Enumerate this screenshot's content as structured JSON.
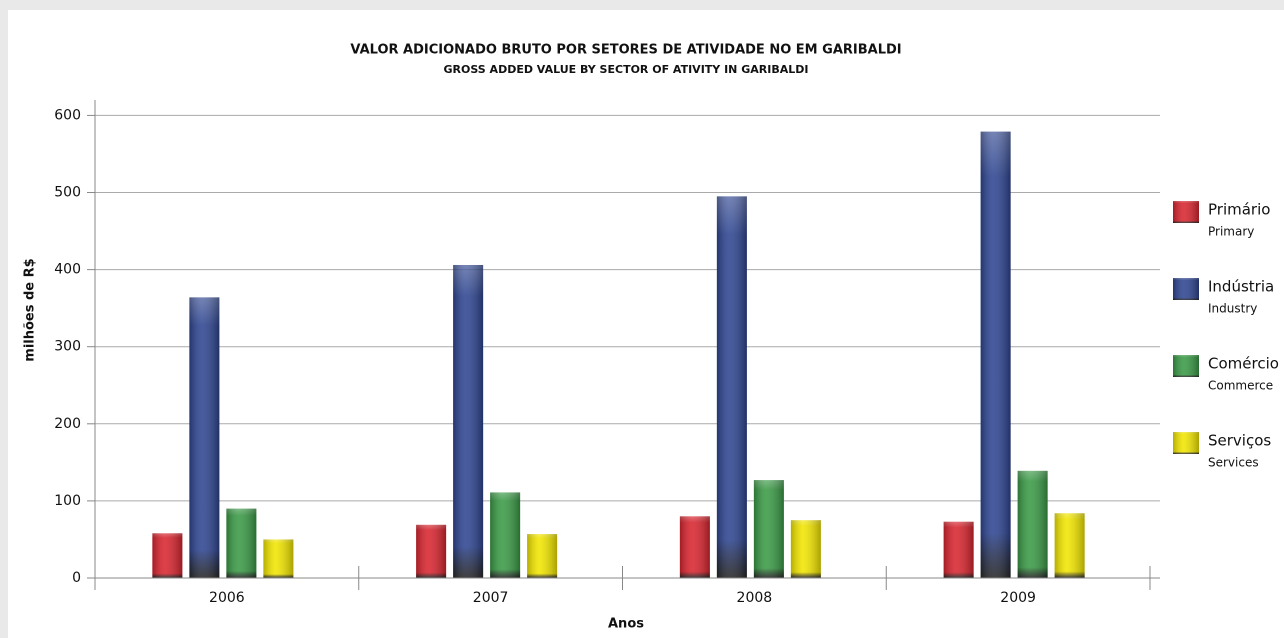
{
  "chart_data": {
    "type": "bar",
    "title": "VALOR ADICIONADO BRUTO POR SETORES DE ATIVIDADE NO EM GARIBALDI",
    "subtitle": "GROSS ADDED VALUE BY SECTOR OF ATIVITY IN GARIBALDI",
    "x_label": "Anos",
    "y_label": "milhões de R$",
    "categories": [
      "2006",
      "2007",
      "2008",
      "2009"
    ],
    "series": [
      {
        "name": "Primário",
        "name_en": "Primary",
        "color": "#d9252f",
        "values": [
          58,
          69,
          80,
          73
        ]
      },
      {
        "name": "Indústria",
        "name_en": "Industry",
        "color": "#2e4591",
        "values": [
          364,
          406,
          495,
          579
        ]
      },
      {
        "name": "Comércio",
        "name_en": "Commerce",
        "color": "#3a9a46",
        "values": [
          90,
          111,
          127,
          139
        ]
      },
      {
        "name": "Serviços",
        "name_en": "Services",
        "color": "#f2e600",
        "values": [
          50,
          57,
          75,
          84
        ]
      }
    ],
    "ylim": [
      0,
      620
    ],
    "yticks": [
      0,
      100,
      200,
      300,
      400,
      500,
      600
    ],
    "grid": true,
    "legend": "right"
  }
}
